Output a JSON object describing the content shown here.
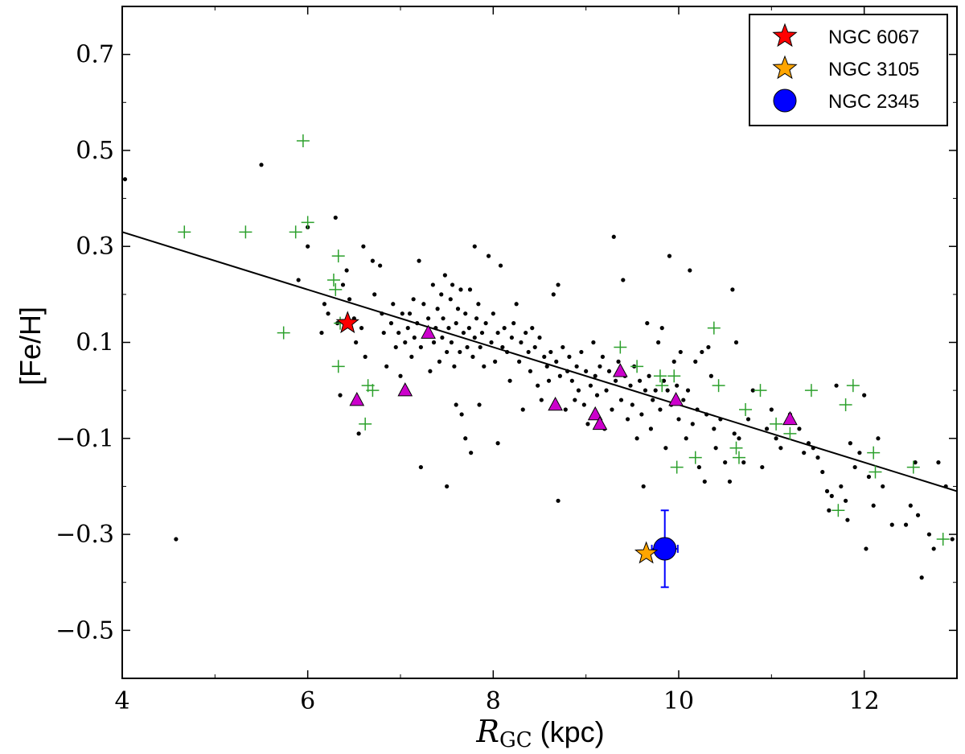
{
  "chart_data": {
    "type": "scatter",
    "xlabel_symbol": "R",
    "xlabel_sub": "GC",
    "xlabel_unit": "(kpc)",
    "ylabel": "[Fe/H]",
    "xlim": [
      4,
      13
    ],
    "ylim": [
      -0.6,
      0.8
    ],
    "xticks": [
      4,
      6,
      8,
      10,
      12
    ],
    "xtick_labels": [
      "4",
      "6",
      "8",
      "10",
      "12"
    ],
    "yticks": [
      0.7,
      0.5,
      0.3,
      0.1,
      -0.1,
      -0.3,
      -0.5
    ],
    "ytick_labels": [
      "0.7",
      "0.5",
      "0.3",
      "0.1",
      "−0.1",
      "−0.3",
      "−0.5"
    ],
    "grid": false,
    "legend_position": "top-right",
    "legend": [
      {
        "label": "NGC 6067",
        "marker": "star",
        "color": "#ff0000"
      },
      {
        "label": "NGC 3105",
        "marker": "star",
        "color": "#ffa500"
      },
      {
        "label": "NGC 2345",
        "marker": "circle",
        "color": "#0000ff"
      }
    ],
    "fit_line": {
      "x": [
        4,
        13
      ],
      "y": [
        0.33,
        -0.21
      ],
      "color": "#000000"
    },
    "series": [
      {
        "marker": "dot",
        "color": "#000000",
        "points": [
          [
            4.03,
            0.44
          ],
          [
            4.58,
            -0.31
          ],
          [
            5.5,
            0.47
          ],
          [
            5.9,
            0.23
          ],
          [
            6.0,
            0.34
          ],
          [
            6.0,
            0.3
          ],
          [
            6.15,
            0.12
          ],
          [
            6.18,
            0.18
          ],
          [
            6.22,
            0.16
          ],
          [
            6.3,
            0.36
          ],
          [
            6.32,
            0.14
          ],
          [
            6.35,
            -0.01
          ],
          [
            6.38,
            0.22
          ],
          [
            6.42,
            0.25
          ],
          [
            6.45,
            0.19
          ],
          [
            6.5,
            0.15
          ],
          [
            6.52,
            0.1
          ],
          [
            6.55,
            -0.09
          ],
          [
            6.58,
            0.13
          ],
          [
            6.6,
            0.3
          ],
          [
            6.62,
            0.07
          ],
          [
            6.7,
            0.27
          ],
          [
            6.72,
            0.2
          ],
          [
            6.78,
            0.26
          ],
          [
            6.8,
            0.16
          ],
          [
            6.82,
            0.12
          ],
          [
            6.85,
            0.05
          ],
          [
            6.9,
            0.14
          ],
          [
            6.92,
            0.18
          ],
          [
            6.95,
            0.09
          ],
          [
            6.98,
            0.12
          ],
          [
            7.0,
            0.03
          ],
          [
            7.02,
            0.16
          ],
          [
            7.05,
            0.1
          ],
          [
            7.08,
            0.13
          ],
          [
            7.1,
            0.16
          ],
          [
            7.12,
            0.07
          ],
          [
            7.14,
            0.19
          ],
          [
            7.15,
            0.11
          ],
          [
            7.18,
            0.14
          ],
          [
            7.2,
            0.27
          ],
          [
            7.22,
            0.09
          ],
          [
            7.22,
            -0.16
          ],
          [
            7.25,
            0.18
          ],
          [
            7.28,
            0.12
          ],
          [
            7.3,
            0.15
          ],
          [
            7.32,
            0.04
          ],
          [
            7.35,
            0.22
          ],
          [
            7.36,
            0.1
          ],
          [
            7.38,
            0.13
          ],
          [
            7.4,
            0.17
          ],
          [
            7.42,
            0.06
          ],
          [
            7.44,
            0.2
          ],
          [
            7.45,
            0.11
          ],
          [
            7.46,
            0.15
          ],
          [
            7.48,
            0.24
          ],
          [
            7.5,
            0.08
          ],
          [
            7.5,
            -0.2
          ],
          [
            7.52,
            0.13
          ],
          [
            7.54,
            0.19
          ],
          [
            7.55,
            0.1
          ],
          [
            7.56,
            0.22
          ],
          [
            7.58,
            0.05
          ],
          [
            7.6,
            0.14
          ],
          [
            7.6,
            -0.03
          ],
          [
            7.62,
            0.17
          ],
          [
            7.64,
            0.08
          ],
          [
            7.65,
            0.21
          ],
          [
            7.66,
            -0.05
          ],
          [
            7.68,
            0.12
          ],
          [
            7.7,
            0.16
          ],
          [
            7.7,
            -0.1
          ],
          [
            7.72,
            0.09
          ],
          [
            7.74,
            0.13
          ],
          [
            7.75,
            0.21
          ],
          [
            7.76,
            -0.13
          ],
          [
            7.78,
            0.07
          ],
          [
            7.8,
            0.11
          ],
          [
            7.8,
            0.3
          ],
          [
            7.82,
            0.15
          ],
          [
            7.84,
            0.18
          ],
          [
            7.85,
            -0.03
          ],
          [
            7.86,
            0.09
          ],
          [
            7.88,
            0.12
          ],
          [
            7.9,
            0.05
          ],
          [
            7.92,
            0.14
          ],
          [
            7.95,
            0.28
          ],
          [
            7.98,
            0.1
          ],
          [
            8.0,
            0.16
          ],
          [
            8.02,
            0.06
          ],
          [
            8.05,
            0.12
          ],
          [
            8.05,
            -0.11
          ],
          [
            8.08,
            0.26
          ],
          [
            8.1,
            0.09
          ],
          [
            8.12,
            0.13
          ],
          [
            8.15,
            0.08
          ],
          [
            8.18,
            0.02
          ],
          [
            8.2,
            0.11
          ],
          [
            8.22,
            0.14
          ],
          [
            8.25,
            0.18
          ],
          [
            8.28,
            0.06
          ],
          [
            8.3,
            0.1
          ],
          [
            8.32,
            -0.04
          ],
          [
            8.35,
            0.12
          ],
          [
            8.38,
            0.08
          ],
          [
            8.4,
            0.04
          ],
          [
            8.42,
            0.13
          ],
          [
            8.45,
            0.09
          ],
          [
            8.48,
            0.01
          ],
          [
            8.5,
            0.11
          ],
          [
            8.52,
            -0.02
          ],
          [
            8.55,
            0.07
          ],
          [
            8.58,
            0.05
          ],
          [
            8.6,
            0.02
          ],
          [
            8.62,
            0.08
          ],
          [
            8.65,
            0.2
          ],
          [
            8.68,
            0.06
          ],
          [
            8.7,
            0.22
          ],
          [
            8.7,
            -0.23
          ],
          [
            8.72,
            0.03
          ],
          [
            8.75,
            0.09
          ],
          [
            8.78,
            -0.04
          ],
          [
            8.8,
            0.04
          ],
          [
            8.82,
            0.07
          ],
          [
            8.85,
            0.02
          ],
          [
            8.88,
            -0.02
          ],
          [
            8.9,
            0.05
          ],
          [
            8.92,
            0.0
          ],
          [
            8.95,
            0.08
          ],
          [
            8.98,
            -0.03
          ],
          [
            9.0,
            0.04
          ],
          [
            9.02,
            -0.07
          ],
          [
            9.05,
            0.01
          ],
          [
            9.08,
            0.1
          ],
          [
            9.1,
            0.03
          ],
          [
            9.12,
            -0.01
          ],
          [
            9.15,
            0.05
          ],
          [
            9.18,
            0.07
          ],
          [
            9.2,
            -0.08
          ],
          [
            9.22,
            0.0
          ],
          [
            9.25,
            0.04
          ],
          [
            9.28,
            -0.04
          ],
          [
            9.3,
            0.32
          ],
          [
            9.32,
            0.02
          ],
          [
            9.35,
            0.06
          ],
          [
            9.38,
            -0.02
          ],
          [
            9.4,
            0.23
          ],
          [
            9.42,
            0.03
          ],
          [
            9.45,
            -0.06
          ],
          [
            9.48,
            0.01
          ],
          [
            9.5,
            -0.03
          ],
          [
            9.52,
            0.05
          ],
          [
            9.55,
            -0.1
          ],
          [
            9.58,
            0.02
          ],
          [
            9.6,
            -0.05
          ],
          [
            9.62,
            -0.2
          ],
          [
            9.64,
            0.0
          ],
          [
            9.66,
            0.14
          ],
          [
            9.68,
            0.03
          ],
          [
            9.7,
            -0.08
          ],
          [
            9.72,
            -0.02
          ],
          [
            9.75,
            0.0
          ],
          [
            9.78,
            0.1
          ],
          [
            9.8,
            -0.04
          ],
          [
            9.82,
            0.13
          ],
          [
            9.84,
            0.02
          ],
          [
            9.86,
            -0.12
          ],
          [
            9.88,
            0.0
          ],
          [
            9.9,
            0.28
          ],
          [
            9.92,
            -0.03
          ],
          [
            9.95,
            0.06
          ],
          [
            9.98,
            0.01
          ],
          [
            10.0,
            -0.06
          ],
          [
            10.02,
            0.08
          ],
          [
            10.05,
            -0.02
          ],
          [
            10.08,
            -0.1
          ],
          [
            10.1,
            0.0
          ],
          [
            10.12,
            0.25
          ],
          [
            10.15,
            -0.07
          ],
          [
            10.18,
            0.06
          ],
          [
            10.2,
            -0.04
          ],
          [
            10.22,
            -0.16
          ],
          [
            10.25,
            0.08
          ],
          [
            10.28,
            -0.19
          ],
          [
            10.3,
            -0.05
          ],
          [
            10.32,
            0.09
          ],
          [
            10.35,
            0.03
          ],
          [
            10.38,
            -0.08
          ],
          [
            10.4,
            -0.12
          ],
          [
            10.45,
            -0.06
          ],
          [
            10.5,
            -0.15
          ],
          [
            10.55,
            -0.19
          ],
          [
            10.58,
            0.21
          ],
          [
            10.6,
            -0.09
          ],
          [
            10.62,
            0.1
          ],
          [
            10.65,
            -0.1
          ],
          [
            10.7,
            -0.15
          ],
          [
            10.75,
            -0.06
          ],
          [
            10.8,
            0.0
          ],
          [
            10.9,
            -0.16
          ],
          [
            10.95,
            -0.08
          ],
          [
            11.0,
            -0.04
          ],
          [
            11.05,
            -0.1
          ],
          [
            11.1,
            -0.12
          ],
          [
            11.2,
            -0.05
          ],
          [
            11.3,
            -0.08
          ],
          [
            11.35,
            -0.13
          ],
          [
            11.4,
            -0.11
          ],
          [
            11.45,
            -0.12
          ],
          [
            11.5,
            -0.14
          ],
          [
            11.55,
            -0.17
          ],
          [
            11.6,
            -0.21
          ],
          [
            11.62,
            -0.25
          ],
          [
            11.65,
            -0.22
          ],
          [
            11.7,
            0.01
          ],
          [
            11.75,
            -0.2
          ],
          [
            11.8,
            -0.23
          ],
          [
            11.82,
            -0.27
          ],
          [
            11.85,
            -0.11
          ],
          [
            11.9,
            -0.16
          ],
          [
            11.95,
            -0.13
          ],
          [
            12.0,
            -0.01
          ],
          [
            12.02,
            -0.33
          ],
          [
            12.05,
            -0.18
          ],
          [
            12.1,
            -0.24
          ],
          [
            12.15,
            -0.1
          ],
          [
            12.2,
            -0.2
          ],
          [
            12.3,
            -0.28
          ],
          [
            12.45,
            -0.28
          ],
          [
            12.5,
            -0.24
          ],
          [
            12.55,
            -0.15
          ],
          [
            12.58,
            -0.26
          ],
          [
            12.62,
            -0.39
          ],
          [
            12.7,
            -0.3
          ],
          [
            12.75,
            -0.33
          ],
          [
            12.8,
            -0.15
          ],
          [
            12.88,
            -0.2
          ],
          [
            12.95,
            -0.31
          ]
        ]
      },
      {
        "marker": "plus",
        "color": "#2ca02c",
        "points": [
          [
            4.67,
            0.33
          ],
          [
            5.33,
            0.33
          ],
          [
            5.74,
            0.12
          ],
          [
            5.87,
            0.33
          ],
          [
            5.95,
            0.52
          ],
          [
            6.0,
            0.35
          ],
          [
            6.28,
            0.23
          ],
          [
            6.3,
            0.21
          ],
          [
            6.33,
            0.28
          ],
          [
            6.33,
            0.05
          ],
          [
            6.35,
            0.14
          ],
          [
            6.62,
            -0.07
          ],
          [
            6.65,
            0.01
          ],
          [
            6.7,
            0.0
          ],
          [
            9.37,
            0.09
          ],
          [
            9.55,
            0.05
          ],
          [
            9.8,
            0.03
          ],
          [
            9.82,
            0.01
          ],
          [
            9.95,
            0.03
          ],
          [
            9.98,
            -0.16
          ],
          [
            10.18,
            -0.14
          ],
          [
            10.38,
            0.13
          ],
          [
            10.43,
            0.01
          ],
          [
            10.62,
            -0.12
          ],
          [
            10.65,
            -0.14
          ],
          [
            10.72,
            -0.04
          ],
          [
            10.88,
            0.0
          ],
          [
            11.05,
            -0.07
          ],
          [
            11.2,
            -0.09
          ],
          [
            11.43,
            0.0
          ],
          [
            11.72,
            -0.25
          ],
          [
            11.8,
            -0.03
          ],
          [
            11.88,
            0.01
          ],
          [
            12.1,
            -0.13
          ],
          [
            12.12,
            -0.17
          ],
          [
            12.53,
            -0.16
          ],
          [
            12.85,
            -0.31
          ]
        ]
      },
      {
        "marker": "triangle",
        "color": "#cc00cc",
        "points": [
          [
            6.53,
            -0.02
          ],
          [
            7.05,
            0.0
          ],
          [
            7.3,
            0.12
          ],
          [
            8.67,
            -0.03
          ],
          [
            9.1,
            -0.05
          ],
          [
            9.15,
            -0.07
          ],
          [
            9.37,
            0.04
          ],
          [
            9.97,
            -0.02
          ],
          [
            11.2,
            -0.06
          ]
        ]
      },
      {
        "name": "NGC 6067",
        "marker": "star",
        "color": "#ff0000",
        "points": [
          [
            6.43,
            0.14
          ]
        ]
      },
      {
        "name": "NGC 3105",
        "marker": "star",
        "color": "#ffa500",
        "points": [
          [
            9.65,
            -0.34
          ]
        ]
      },
      {
        "name": "NGC 2345",
        "marker": "circle",
        "color": "#0000ff",
        "points": [
          [
            9.85,
            -0.33
          ]
        ],
        "xerr": 0.14,
        "yerr": 0.08
      }
    ]
  }
}
